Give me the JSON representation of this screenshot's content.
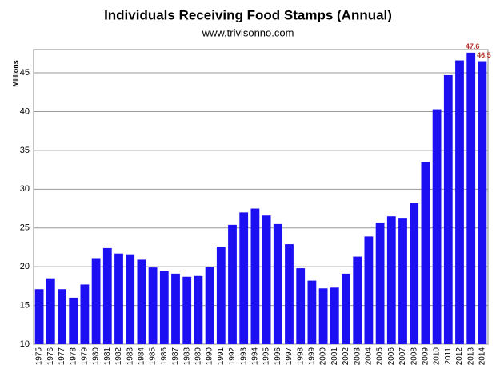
{
  "chart_data": {
    "type": "bar",
    "title": "Individuals Receiving Food Stamps (Annual)",
    "subtitle": "www.trivisonno.com",
    "y_label": "Millions",
    "categories": [
      "1975",
      "1976",
      "1977",
      "1978",
      "1979",
      "1980",
      "1981",
      "1982",
      "1983",
      "1984",
      "1985",
      "1986",
      "1987",
      "1988",
      "1989",
      "1990",
      "1991",
      "1992",
      "1993",
      "1994",
      "1995",
      "1996",
      "1997",
      "1998",
      "1999",
      "2000",
      "2001",
      "2002",
      "2003",
      "2004",
      "2005",
      "2006",
      "2007",
      "2008",
      "2009",
      "2010",
      "2011",
      "2012",
      "2013",
      "2014"
    ],
    "values": [
      17.1,
      18.5,
      17.1,
      16.0,
      17.7,
      21.1,
      22.4,
      21.7,
      21.6,
      20.9,
      19.9,
      19.4,
      19.1,
      18.7,
      18.8,
      20.0,
      22.6,
      25.4,
      27.0,
      27.5,
      26.6,
      25.5,
      22.9,
      19.8,
      18.2,
      17.2,
      17.3,
      19.1,
      21.3,
      23.9,
      25.7,
      26.5,
      26.3,
      28.2,
      33.5,
      40.3,
      44.7,
      46.6,
      47.6,
      46.5
    ],
    "value_labels": [
      null,
      null,
      null,
      null,
      null,
      null,
      null,
      null,
      null,
      null,
      null,
      null,
      null,
      null,
      null,
      null,
      null,
      null,
      null,
      null,
      null,
      null,
      null,
      null,
      null,
      null,
      null,
      null,
      null,
      null,
      null,
      null,
      null,
      null,
      null,
      null,
      null,
      null,
      "47.6",
      "46.5"
    ],
    "color": "#1c0ff2",
    "label_color": "#b5332a",
    "ylim": [
      10,
      48
    ],
    "yticks": [
      10,
      15,
      20,
      25,
      30,
      35,
      40,
      45
    ],
    "grid": true
  }
}
